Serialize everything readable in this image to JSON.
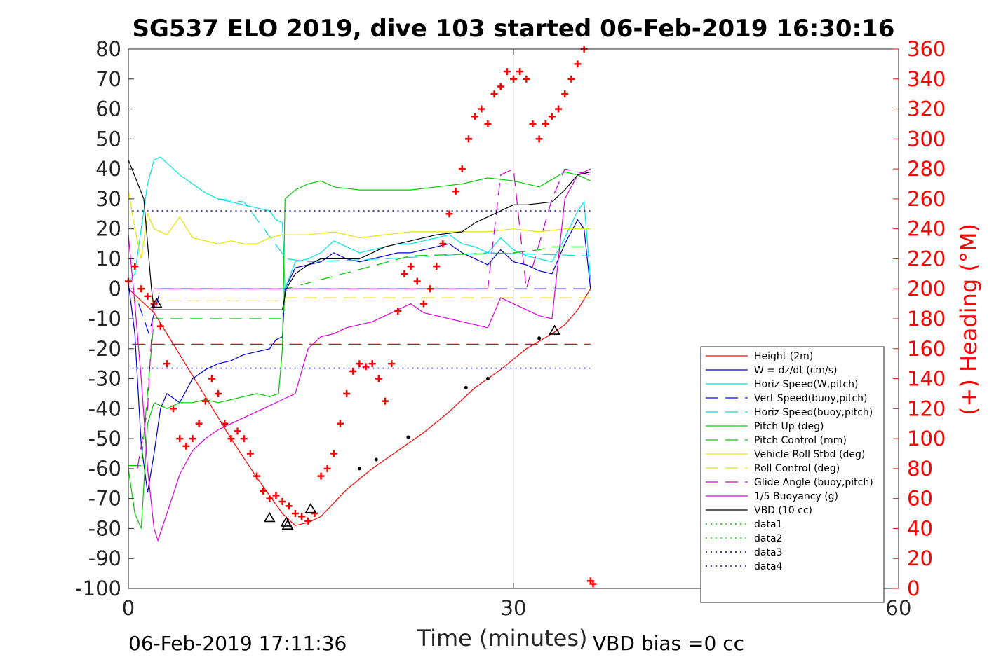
{
  "chart_data": {
    "type": "line",
    "title": "SG537 ELO 2019, dive 103 started 06-Feb-2019 16:30:16",
    "xlabel": "Time (minutes)",
    "ylabel_right": "(+) Heading (°M)",
    "footer_left": "06-Feb-2019 17:11:36",
    "footer_right": "VBD bias =0 cc",
    "xlim": [
      0,
      60
    ],
    "ylim": [
      -100,
      80
    ],
    "ylim_right": [
      0,
      360
    ],
    "x_ticks": [
      "0",
      "30",
      "60"
    ],
    "y_ticks": [
      "80",
      "70",
      "60",
      "50",
      "40",
      "30",
      "20",
      "10",
      "0",
      "-10",
      "-20",
      "-30",
      "-40",
      "-50",
      "-60",
      "-70",
      "-80",
      "-90",
      "-100"
    ],
    "y_ticks_right": [
      "360",
      "340",
      "320",
      "300",
      "280",
      "260",
      "240",
      "220",
      "200",
      "180",
      "160",
      "140",
      "120",
      "100",
      "80",
      "60",
      "40",
      "20",
      "0"
    ],
    "grid": "x only at 30",
    "legend_position": "bottom-right",
    "colors": {
      "height": "#ff0000",
      "w": "#0000cc",
      "hspeed": "#00e5e5",
      "vspeed_buoy": "#0000ff",
      "hspeed_buoy": "#00dddd",
      "pitch": "#00cc00",
      "pitch_ctrl": "#00cc00",
      "roll": "#e5e500",
      "roll_ctrl": "#e5e500",
      "glide": "#cc00cc",
      "buoyancy": "#dd00dd",
      "vbd": "#000000",
      "heading": "#ff0000"
    },
    "series": [
      {
        "name": "Height (2m)",
        "key": "height",
        "style": "solid",
        "color": "#ff0000",
        "x": [
          0,
          2,
          4,
          6,
          8,
          10,
          12,
          13,
          14,
          15,
          17,
          19,
          21,
          23,
          25,
          27,
          29,
          31,
          33,
          34,
          35,
          36
        ],
        "y": [
          0,
          -8,
          -22,
          -36,
          -50,
          -63,
          -75,
          -79,
          -78,
          -76,
          -67,
          -60,
          -54,
          -48,
          -41,
          -33,
          -27,
          -20,
          -15,
          -12,
          -7,
          0
        ]
      },
      {
        "name": "W = dz/dt (cm/s)",
        "key": "w",
        "style": "solid",
        "color": "#0000cc",
        "x": [
          0,
          0.5,
          1,
          1.5,
          2,
          2.5,
          3,
          4,
          5,
          6,
          7,
          8,
          9,
          10,
          11,
          11.5,
          12,
          12.2,
          13,
          14,
          15,
          16,
          17,
          18,
          19,
          20,
          21,
          22,
          23,
          24,
          25,
          26,
          27,
          28,
          29,
          30,
          31,
          32,
          33,
          34,
          35,
          35.5,
          36
        ],
        "y": [
          2,
          -15,
          -52,
          -68,
          -55,
          -40,
          -35,
          -38,
          -30,
          -27,
          -25,
          -24,
          -22,
          -21,
          -20,
          -17,
          -16,
          0,
          7,
          8,
          9,
          12,
          10,
          9,
          10,
          11,
          12,
          12,
          13,
          14,
          15,
          12,
          10,
          8,
          13,
          9,
          8,
          6,
          5,
          15,
          23,
          20,
          0
        ]
      },
      {
        "name": "Horiz Speed(W,pitch)",
        "key": "hspeed",
        "style": "solid",
        "color": "#00e5e5",
        "x": [
          0,
          0.5,
          1,
          1.5,
          2,
          2.5,
          3,
          4,
          5,
          6,
          7,
          8,
          9,
          10,
          11,
          11.5,
          12,
          12.2,
          13,
          14,
          15,
          16,
          17,
          18,
          19,
          20,
          21,
          22,
          23,
          24,
          25,
          26,
          27,
          28,
          29,
          30,
          31,
          32,
          33,
          34,
          35,
          35.5,
          36
        ],
        "y": [
          2,
          5,
          20,
          35,
          43,
          44,
          42,
          38,
          35,
          32,
          30,
          29,
          28,
          27,
          26,
          23,
          22,
          0,
          9,
          10,
          12,
          16,
          14,
          12,
          13,
          14,
          15,
          15,
          16,
          17,
          18,
          15,
          14,
          12,
          17,
          13,
          11,
          10,
          9,
          17,
          26,
          29,
          3
        ]
      },
      {
        "name": "Vert Speed(buoy,pitch)",
        "key": "vspeed_buoy",
        "style": "dash",
        "color": "#0000ff",
        "x": [
          0.8,
          1.6,
          2.5,
          12.3,
          14,
          28,
          30,
          36
        ],
        "y": [
          -5,
          -15,
          0,
          0,
          0,
          0,
          0,
          0
        ]
      },
      {
        "name": "Horiz Speed(buoy,pitch)",
        "key": "hspeed_buoy",
        "style": "dash",
        "color": "#00dddd",
        "x": [
          7,
          9,
          12.3,
          14,
          20,
          24,
          28,
          36
        ],
        "y": [
          30,
          29,
          10,
          9,
          10,
          11,
          12,
          11
        ]
      },
      {
        "name": "Pitch Up (deg)",
        "key": "pitch",
        "style": "solid",
        "color": "#00cc00",
        "x": [
          0,
          0.5,
          1,
          1.5,
          2,
          3,
          4,
          5,
          6,
          7,
          8,
          9,
          10,
          11,
          11.7,
          12,
          12.2,
          13,
          14,
          15,
          16,
          18,
          20,
          22,
          24,
          26,
          28,
          30,
          32,
          34,
          35,
          36
        ],
        "y": [
          -60,
          -75,
          -80,
          -45,
          -38,
          -40,
          -38,
          -38,
          -37,
          -38,
          -37,
          -36,
          -35,
          -36,
          -35,
          -20,
          30,
          33,
          35,
          36,
          34,
          33,
          33,
          33,
          34,
          35,
          37,
          36,
          34,
          39,
          38,
          36
        ]
      },
      {
        "name": "Pitch Control (mm)",
        "key": "pitch_ctrl",
        "style": "dash",
        "color": "#00cc00",
        "x": [
          0,
          1,
          2,
          12,
          12.3,
          22,
          30,
          32,
          33,
          36
        ],
        "y": [
          -59,
          -59,
          -10,
          -10,
          0,
          11,
          12,
          13,
          14,
          14
        ]
      },
      {
        "name": "Vehicle Roll Stbd (deg)",
        "key": "roll",
        "style": "solid",
        "color": "#e5e500",
        "x": [
          0,
          0.5,
          1,
          1.5,
          2,
          3,
          4,
          5,
          6,
          7,
          8,
          9,
          10,
          11,
          12,
          14,
          16,
          18,
          20,
          22,
          24,
          26,
          28,
          30,
          32,
          34,
          36
        ],
        "y": [
          33,
          20,
          10,
          25,
          20,
          18,
          24,
          17,
          16,
          15,
          16,
          15,
          15,
          17,
          18,
          18,
          19,
          17,
          18,
          19,
          19,
          19,
          19,
          20,
          19,
          20,
          20
        ]
      },
      {
        "name": "Roll Control (deg)",
        "key": "roll_ctrl",
        "style": "dash",
        "color": "#e5e500",
        "x": [
          0,
          1,
          2,
          12,
          12.3,
          36
        ],
        "y": [
          -4,
          -4,
          -4,
          -4,
          -3,
          -3
        ]
      },
      {
        "name": "Glide Angle (buoy,pitch)",
        "key": "glide",
        "style": "dash",
        "color": "#cc00cc",
        "x": [
          0.7,
          1.5,
          2,
          12.3,
          28,
          29,
          30,
          31,
          33,
          34,
          35,
          36
        ],
        "y": [
          -60,
          -40,
          0,
          0,
          0,
          38,
          40,
          0,
          30,
          40,
          39,
          38
        ]
      },
      {
        "name": "1/5 Buoyancy (g)",
        "key": "buoyancy",
        "style": "solid",
        "color": "#dd00dd",
        "x": [
          0,
          0.5,
          1,
          1.5,
          2,
          2.3,
          3,
          4,
          5,
          6,
          7,
          8,
          9,
          10,
          11,
          12,
          13,
          14,
          15,
          16,
          17,
          18,
          19,
          20,
          21,
          22,
          23,
          24,
          25,
          26,
          27,
          28,
          29,
          30,
          31,
          32,
          33,
          34,
          35,
          36
        ],
        "y": [
          18,
          -5,
          -30,
          -60,
          -80,
          -84,
          -75,
          -62,
          -54,
          -50,
          -47,
          -45,
          -43,
          -41,
          -39,
          -37,
          -35,
          -20,
          -16,
          -15,
          -13,
          -12,
          -11,
          -9,
          -7,
          -5,
          -8,
          -9,
          -10,
          -11,
          -12,
          -13,
          -3,
          -5,
          -7,
          -9,
          -10,
          30,
          38,
          40
        ]
      },
      {
        "name": "VBD (10 cc)",
        "key": "vbd",
        "style": "solid",
        "color": "#000000",
        "x": [
          0,
          1.2,
          1.8,
          2,
          3,
          12,
          12.3,
          13,
          14,
          15,
          18,
          19,
          20,
          21,
          22,
          24,
          26,
          27,
          28,
          30,
          31,
          33,
          34,
          35,
          36
        ],
        "y": [
          43,
          30,
          0,
          -7,
          -7,
          -7,
          0,
          5,
          8,
          10,
          10,
          12,
          14,
          15,
          16,
          18,
          19,
          22,
          24,
          28,
          28,
          29,
          33,
          38,
          39
        ]
      },
      {
        "name": "data1",
        "key": "data1",
        "style": "dot",
        "color": "#00cc00",
        "x": [],
        "y": []
      },
      {
        "name": "data2",
        "key": "data2",
        "style": "dot",
        "color": "#00ee00",
        "x": [],
        "y": []
      },
      {
        "name": "data3",
        "key": "data3",
        "style": "dot",
        "color": "#0000aa",
        "x": [
          0.3,
          36
        ],
        "y": [
          26,
          26
        ]
      },
      {
        "name": "data4",
        "key": "data4",
        "style": "dot",
        "color": "#0000aa",
        "x": [
          0.3,
          36
        ],
        "y": [
          -26.5,
          -26.5
        ]
      }
    ],
    "extra_lines": [
      {
        "key": "depth-limit-line",
        "style": "dash",
        "color": "#ff0000",
        "x": [
          0.3,
          36
        ],
        "y": [
          -18.5,
          -18.5
        ]
      }
    ],
    "heading": {
      "name": "(+) Heading (°M)",
      "color": "#ff0000",
      "x": [
        0,
        0.5,
        1,
        1.5,
        2,
        2.5,
        3,
        3.5,
        4,
        4.5,
        5,
        5.5,
        6,
        6.5,
        7,
        7.5,
        8,
        8.5,
        9,
        9.5,
        10,
        10.5,
        11,
        11.5,
        12,
        12.5,
        13,
        13.5,
        14,
        14.5,
        15,
        15.5,
        16,
        16.5,
        17,
        17.5,
        18,
        18.5,
        19,
        19.5,
        20,
        20.5,
        21,
        21.5,
        22,
        22.5,
        23,
        23.5,
        24,
        24.5,
        25,
        25.5,
        26,
        26.5,
        27,
        27.5,
        28,
        28.5,
        29,
        29.5,
        30,
        30.5,
        31,
        31.5,
        32,
        32.5,
        33,
        33.5,
        34,
        34.5,
        35,
        35.5,
        36,
        36.2
      ],
      "y": [
        205,
        215,
        200,
        195,
        190,
        175,
        150,
        120,
        100,
        95,
        100,
        110,
        125,
        140,
        130,
        110,
        100,
        105,
        100,
        90,
        75,
        65,
        60,
        62,
        58,
        55,
        50,
        48,
        45,
        50,
        75,
        80,
        90,
        110,
        130,
        145,
        150,
        148,
        150,
        140,
        125,
        150,
        185,
        210,
        215,
        205,
        190,
        200,
        215,
        230,
        250,
        265,
        280,
        300,
        315,
        320,
        310,
        330,
        335,
        345,
        340,
        345,
        340,
        310,
        300,
        310,
        315,
        320,
        330,
        340,
        350,
        360,
        5,
        3
      ]
    },
    "markers": {
      "triangles": [
        {
          "x": 2.2,
          "y": -5
        },
        {
          "x": 11,
          "y": -76.5
        },
        {
          "x": 12.3,
          "y": -78
        },
        {
          "x": 12.4,
          "y": -79
        },
        {
          "x": 14.2,
          "y": -73.5
        },
        {
          "x": 33.2,
          "y": -14
        }
      ],
      "dots": [
        {
          "x": 18,
          "y": -60
        },
        {
          "x": 19.3,
          "y": -57
        },
        {
          "x": 21.8,
          "y": -49.5
        },
        {
          "x": 26.3,
          "y": -33
        },
        {
          "x": 28,
          "y": -30
        },
        {
          "x": 32,
          "y": -16.5
        }
      ]
    }
  }
}
